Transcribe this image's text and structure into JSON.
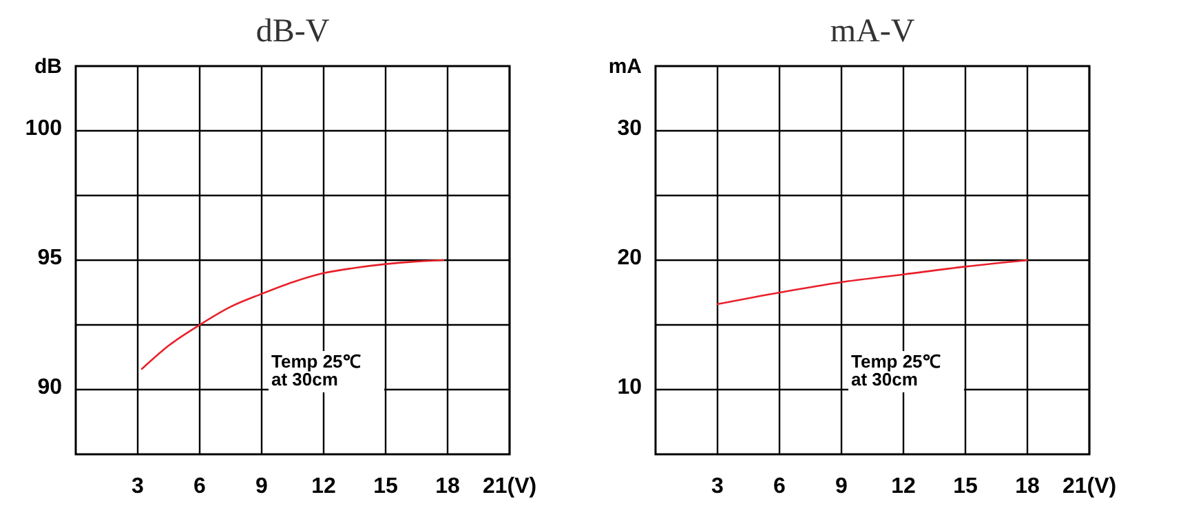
{
  "chart_data": [
    {
      "type": "line",
      "title": "dB-V",
      "ylabel": "dB",
      "annotations": [
        "Temp 25℃\nat 30cm"
      ],
      "xlim": [
        0,
        21
      ],
      "xticks": [
        3,
        6,
        9,
        12,
        15,
        18,
        {
          "value": 21,
          "label": "21(V)"
        }
      ],
      "ylim": [
        87.5,
        102.5
      ],
      "yticks": [
        90,
        {
          "value": 92.5,
          "label": null
        },
        95,
        {
          "value": 97.5,
          "label": null
        },
        100
      ],
      "grid": true,
      "marker": "none",
      "line_style": "solid",
      "series": [
        {
          "color": "#e8202a",
          "x": [
            3.2,
            4.5,
            6,
            7.5,
            9,
            10.5,
            12,
            13.5,
            15,
            16.5,
            17.8
          ],
          "values": [
            90.8,
            91.7,
            92.5,
            93.2,
            93.7,
            94.15,
            94.5,
            94.7,
            94.85,
            94.95,
            95.0
          ]
        }
      ]
    },
    {
      "type": "line",
      "title": "mA-V",
      "ylabel": "mA",
      "annotations": [
        "Temp 25℃\nat 30cm"
      ],
      "xlim": [
        0,
        21
      ],
      "xticks": [
        3,
        6,
        9,
        12,
        15,
        18,
        {
          "value": 21,
          "label": "21(V)"
        }
      ],
      "ylim": [
        5,
        35
      ],
      "yticks": [
        10,
        {
          "value": 15,
          "label": null
        },
        20,
        {
          "value": 25,
          "label": null
        },
        30
      ],
      "grid": true,
      "marker": "none",
      "line_style": "solid",
      "series": [
        {
          "color": "#e8202a",
          "x": [
            3,
            6,
            9,
            12,
            15,
            18
          ],
          "values": [
            16.6,
            17.5,
            18.3,
            18.9,
            19.5,
            20.0
          ]
        }
      ]
    }
  ]
}
